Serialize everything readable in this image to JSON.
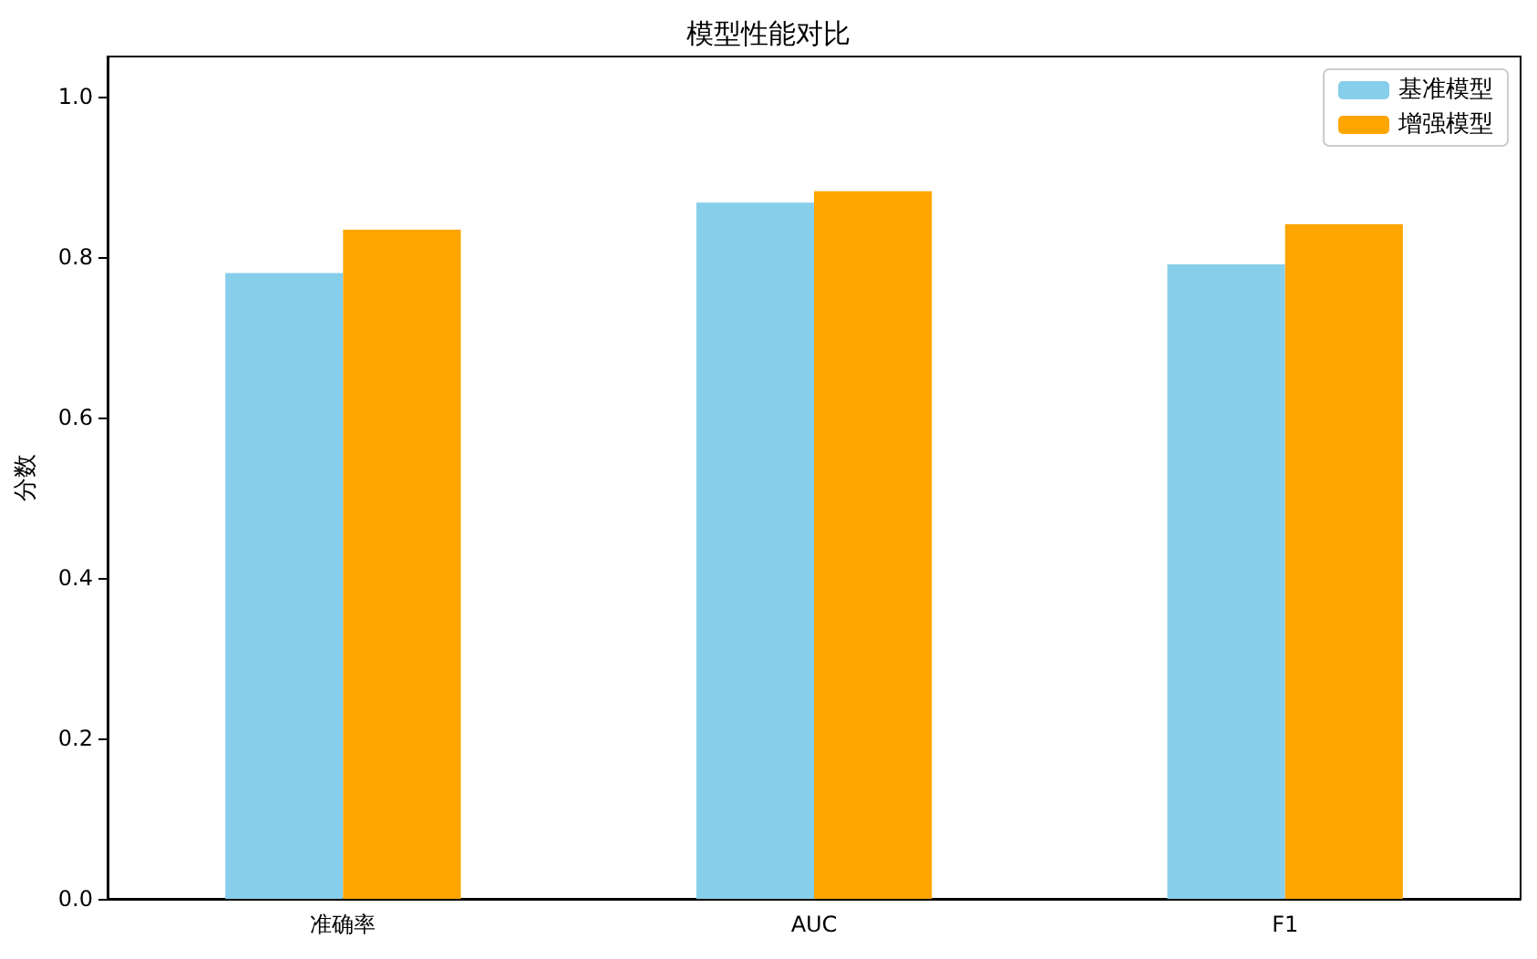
{
  "chart_data": {
    "type": "bar",
    "title": "模型性能对比",
    "ylabel": "分数",
    "categories": [
      "准确率",
      "AUC",
      "F1"
    ],
    "series": [
      {
        "name": "基准模型",
        "color": "#87ceeb",
        "values": [
          0.78,
          0.868,
          0.791
        ]
      },
      {
        "name": "增强模型",
        "color": "#ffa500",
        "values": [
          0.834,
          0.882,
          0.841
        ]
      }
    ],
    "ylim": [
      0,
      1.05
    ],
    "yticks": [
      {
        "value": 0,
        "label": "0.0"
      },
      0.2,
      0.4,
      0.6,
      0.8,
      {
        "value": 1,
        "label": "1.0"
      }
    ],
    "grid": false,
    "legend": "top right"
  }
}
